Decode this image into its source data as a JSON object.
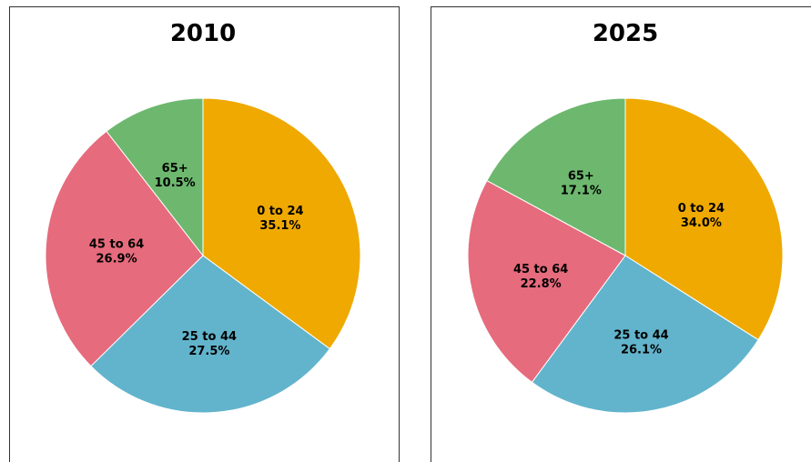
{
  "chart_data": [
    {
      "type": "pie",
      "title": "2010",
      "categories": [
        "0 to 24",
        "25 to 44",
        "45 to 64",
        "65+"
      ],
      "values": [
        35.1,
        27.5,
        26.9,
        10.5
      ],
      "value_labels": [
        "35.1%",
        "27.5%",
        "26.9%",
        "10.5%"
      ],
      "colors": [
        "#efa900",
        "#62b4cc",
        "#e66b7d",
        "#6db86e"
      ]
    },
    {
      "type": "pie",
      "title": "2025",
      "categories": [
        "0 to 24",
        "25 to 44",
        "45 to 64",
        "65+"
      ],
      "values": [
        34.0,
        26.1,
        22.8,
        17.1
      ],
      "value_labels": [
        "34.0%",
        "26.1%",
        "22.8%",
        "17.1%"
      ],
      "colors": [
        "#efa900",
        "#62b4cc",
        "#e66b7d",
        "#6db86e"
      ]
    }
  ]
}
